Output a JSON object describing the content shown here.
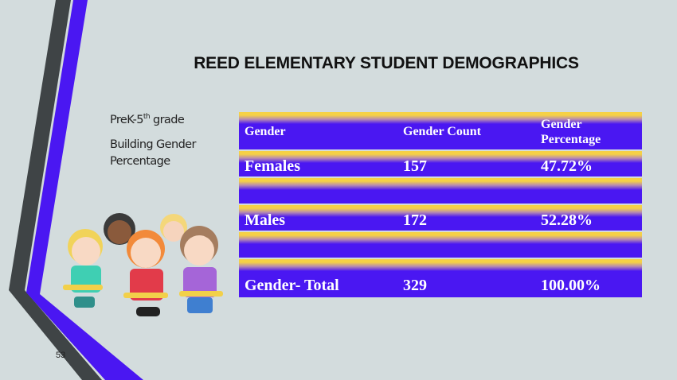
{
  "slide": {
    "title": "REED ELEMENTARY STUDENT DEMOGRAPHICS",
    "subtitle_grade_prefix": "PreK-5",
    "subtitle_grade_sup": "th",
    "subtitle_grade_suffix": " grade",
    "subtitle_line2": "Building Gender",
    "subtitle_line3": "Percentage",
    "page_number": "53"
  },
  "table": {
    "headers": [
      "Gender",
      "Gender Count",
      "Gender Percentage"
    ],
    "rows": [
      [
        "Females",
        "157",
        "47.72%"
      ],
      [
        "Males",
        "172",
        "52.28%"
      ],
      [
        "Gender- Total",
        "329",
        "100.00%"
      ]
    ]
  },
  "colors": {
    "accent_purple": "#4a17f2",
    "accent_yellow": "#f5d146",
    "dark_stripe": "#3f4446",
    "background": "#d3dcdd"
  }
}
